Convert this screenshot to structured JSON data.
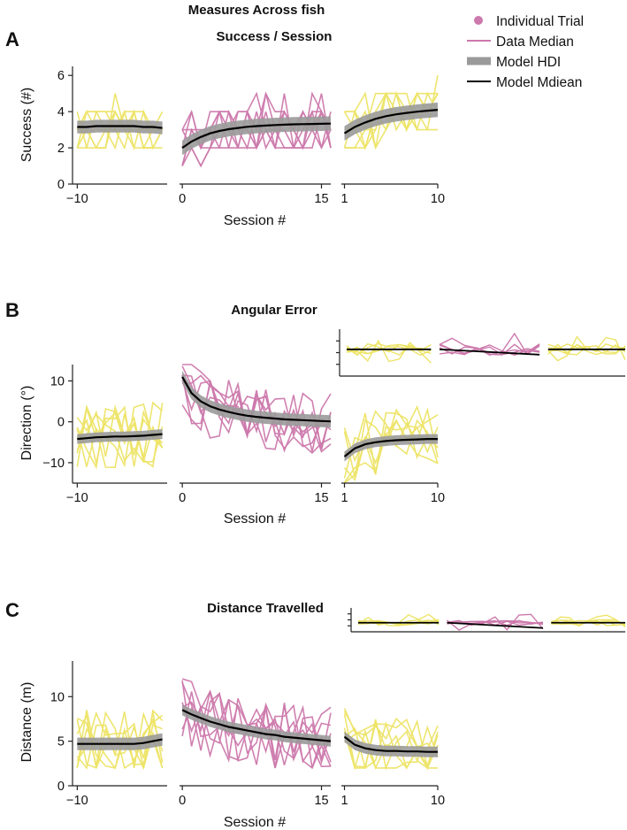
{
  "figure": {
    "title": "Measures Across fish",
    "colors": {
      "pre": "#ede467",
      "train": "#cc79ac",
      "post": "#ede467",
      "hdi": "#9a9a9a",
      "mean": "#000000"
    }
  },
  "legend": {
    "items": [
      {
        "label": "Individual Trial",
        "kind": "dot",
        "color": "#cc79ac"
      },
      {
        "label": "Data Median",
        "kind": "line",
        "color": "#cc79ac"
      },
      {
        "label": "Model HDI",
        "kind": "band",
        "color": "#9a9a9a"
      },
      {
        "label": "Model Mdiean",
        "kind": "line",
        "color": "#000000"
      }
    ]
  },
  "panels": [
    {
      "letter": "A",
      "title": "Success / Session",
      "ylabel": "Success (#)",
      "xlabel": "Session #",
      "yticks": [
        "0",
        "2",
        "4",
        "6"
      ],
      "xticks": {
        "pre": [
          "−10"
        ],
        "train": [
          "0",
          "15"
        ],
        "post": [
          "1",
          "10"
        ]
      }
    },
    {
      "letter": "B",
      "title": "Angular Error",
      "ylabel": "Direction (°)",
      "xlabel": "Session #",
      "yticks": [
        "−10",
        "0",
        "10"
      ],
      "xticks": {
        "pre": [
          "−10"
        ],
        "train": [
          "0",
          "15"
        ],
        "post": [
          "1",
          "10"
        ]
      }
    },
    {
      "letter": "C",
      "title": "Distance Travelled",
      "ylabel": "Distance (m)",
      "xlabel": "Session #",
      "yticks": [
        "0",
        "5",
        "10"
      ],
      "xticks": {
        "pre": [
          "−10"
        ],
        "train": [
          "0",
          "15"
        ],
        "post": [
          "1",
          "10"
        ]
      }
    }
  ],
  "chart_data": [
    {
      "type": "line",
      "title": "Success / Session",
      "ylabel": "Success (#)",
      "xlabel": "Session #",
      "ylim": [
        0,
        6.5
      ],
      "segments": [
        {
          "name": "pre",
          "x": [
            -10,
            -9,
            -8,
            -7,
            -6,
            -5,
            -4,
            -3,
            -2,
            -1
          ],
          "xlim": [
            -10.5,
            -0.5
          ],
          "model_median": [
            3.15,
            3.15,
            3.2,
            3.2,
            3.2,
            3.2,
            3.2,
            3.15,
            3.15,
            3.1
          ],
          "hdi_halfwidth": 0.35
        },
        {
          "name": "train",
          "x": [
            0,
            1,
            2,
            3,
            4,
            5,
            6,
            7,
            8,
            9,
            10,
            11,
            12,
            13,
            14,
            15,
            16
          ],
          "xlim": [
            -0.3,
            16
          ],
          "model_median": [
            2.0,
            2.35,
            2.6,
            2.8,
            2.93,
            3.03,
            3.1,
            3.16,
            3.2,
            3.23,
            3.26,
            3.28,
            3.3,
            3.31,
            3.32,
            3.33,
            3.34
          ],
          "hdi_halfwidth": 0.4
        },
        {
          "name": "post",
          "x": [
            1,
            2,
            3,
            4,
            5,
            6,
            7,
            8,
            9,
            10
          ],
          "xlim": [
            0.7,
            10
          ],
          "model_median": [
            2.8,
            3.15,
            3.4,
            3.6,
            3.75,
            3.85,
            3.93,
            4.0,
            4.05,
            4.1
          ],
          "hdi_halfwidth": 0.4
        }
      ],
      "trials_range": [
        0,
        6
      ]
    },
    {
      "type": "line",
      "title": "Angular Error",
      "ylabel": "Direction (°)",
      "xlabel": "Session #",
      "ylim": [
        -15,
        14
      ],
      "segments": [
        {
          "name": "pre",
          "x": [
            -10,
            -9,
            -8,
            -7,
            -6,
            -5,
            -4,
            -3,
            -2,
            -1
          ],
          "xlim": [
            -10.5,
            -0.5
          ],
          "model_median": [
            -4.2,
            -4.0,
            -3.8,
            -3.7,
            -3.6,
            -3.6,
            -3.5,
            -3.4,
            -3.2,
            -3.0
          ],
          "hdi_halfwidth": 1.2
        },
        {
          "name": "train",
          "x": [
            0,
            1,
            2,
            3,
            4,
            5,
            6,
            7,
            8,
            9,
            10,
            11,
            12,
            13,
            14,
            15,
            16
          ],
          "xlim": [
            -0.3,
            16
          ],
          "model_median": [
            11.0,
            7.0,
            5.0,
            3.8,
            3.0,
            2.4,
            1.9,
            1.5,
            1.2,
            1.0,
            0.8,
            0.6,
            0.5,
            0.4,
            0.3,
            0.2,
            0.1
          ],
          "hdi_halfwidth": 1.5
        },
        {
          "name": "post",
          "x": [
            1,
            2,
            3,
            4,
            5,
            6,
            7,
            8,
            9,
            10
          ],
          "xlim": [
            0.7,
            10
          ],
          "model_median": [
            -8.5,
            -6.5,
            -5.5,
            -5.0,
            -4.7,
            -4.5,
            -4.4,
            -4.3,
            -4.2,
            -4.2
          ],
          "hdi_halfwidth": 1.2
        }
      ],
      "trials_range": [
        -15,
        14
      ]
    },
    {
      "type": "line",
      "title": "Distance Travelled",
      "ylabel": "Distance (m)",
      "xlabel": "Session #",
      "ylim": [
        0,
        14
      ],
      "segments": [
        {
          "name": "pre",
          "x": [
            -10,
            -9,
            -8,
            -7,
            -6,
            -5,
            -4,
            -3,
            -2,
            -1
          ],
          "xlim": [
            -10.5,
            -0.5
          ],
          "model_median": [
            4.7,
            4.7,
            4.7,
            4.7,
            4.7,
            4.7,
            4.7,
            4.8,
            5.0,
            5.2
          ],
          "hdi_halfwidth": 0.7
        },
        {
          "name": "train",
          "x": [
            0,
            1,
            2,
            3,
            4,
            5,
            6,
            7,
            8,
            9,
            10,
            11,
            12,
            13,
            14,
            15,
            16
          ],
          "xlim": [
            -0.3,
            16
          ],
          "model_median": [
            8.5,
            8.0,
            7.6,
            7.2,
            6.9,
            6.6,
            6.4,
            6.2,
            6.0,
            5.8,
            5.7,
            5.5,
            5.4,
            5.3,
            5.2,
            5.1,
            5.0
          ],
          "hdi_halfwidth": 0.6
        },
        {
          "name": "post",
          "x": [
            1,
            2,
            3,
            4,
            5,
            6,
            7,
            8,
            9,
            10
          ],
          "xlim": [
            0.7,
            10
          ],
          "model_median": [
            5.5,
            4.6,
            4.2,
            4.0,
            3.9,
            3.9,
            3.85,
            3.85,
            3.8,
            3.8
          ],
          "hdi_halfwidth": 0.6
        }
      ],
      "trials_range": [
        2,
        14
      ]
    }
  ]
}
